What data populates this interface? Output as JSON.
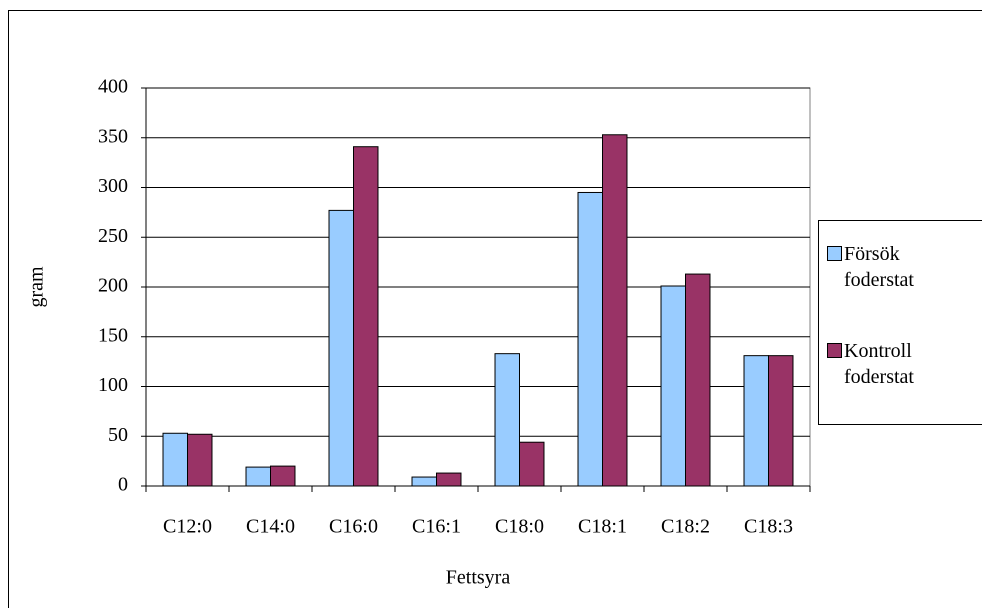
{
  "chart_data": {
    "type": "bar",
    "x_label": "Fettsyra",
    "y_label": "gram",
    "categories": [
      "C12:0",
      "C14:0",
      "C16:0",
      "C16:1",
      "C18:0",
      "C18:1",
      "C18:2",
      "C18:3"
    ],
    "series": [
      {
        "name": "Försök foderstat",
        "color": "#99ccff",
        "values": [
          53,
          19,
          277,
          9,
          133,
          295,
          201,
          131
        ]
      },
      {
        "name": "Kontroll foderstat",
        "color": "#993366",
        "values": [
          52,
          20,
          341,
          13,
          44,
          353,
          213,
          131
        ]
      }
    ],
    "ylim": [
      0,
      400
    ],
    "yticks": [
      0,
      50,
      100,
      150,
      200,
      250,
      300,
      350,
      400
    ],
    "grid": true,
    "legend": "right"
  }
}
